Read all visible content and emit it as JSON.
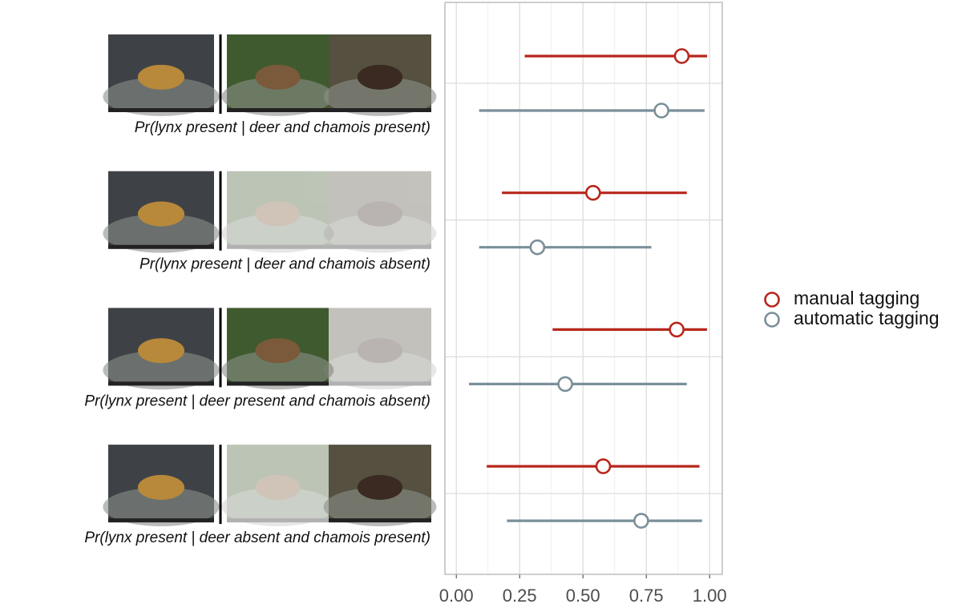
{
  "chart_data": {
    "type": "dot-whisker",
    "categories": [
      "Pr(lynx present | deer and chamois present)",
      "Pr(lynx present | deer and chamois absent)",
      "Pr(lynx present | deer present and chamois absent)",
      "Pr(lynx present | deer absent and chamois present)"
    ],
    "series": [
      {
        "name": "manual tagging",
        "color": "#b8261c",
        "values": [
          0.89,
          0.54,
          0.87,
          0.58
        ],
        "lower": [
          0.27,
          0.18,
          0.38,
          0.12
        ],
        "upper": [
          0.99,
          0.91,
          0.99,
          0.96
        ]
      },
      {
        "name": "automatic tagging",
        "color": "#7a8f99",
        "values": [
          0.81,
          0.32,
          0.43,
          0.73
        ],
        "lower": [
          0.09,
          0.09,
          0.05,
          0.2
        ],
        "upper": [
          0.98,
          0.77,
          0.91,
          0.97
        ]
      }
    ],
    "xlim": [
      -0.045,
      1.05
    ],
    "xticks": [
      {
        "value": 0,
        "label": "0.00"
      },
      {
        "value": 0.25,
        "label": "0.25"
      },
      {
        "value": 0.5,
        "label": "0.50"
      },
      {
        "value": 0.75,
        "label": "0.75"
      },
      {
        "value": 1,
        "label": "1.00"
      }
    ],
    "grid": true,
    "legend": "right"
  }
}
